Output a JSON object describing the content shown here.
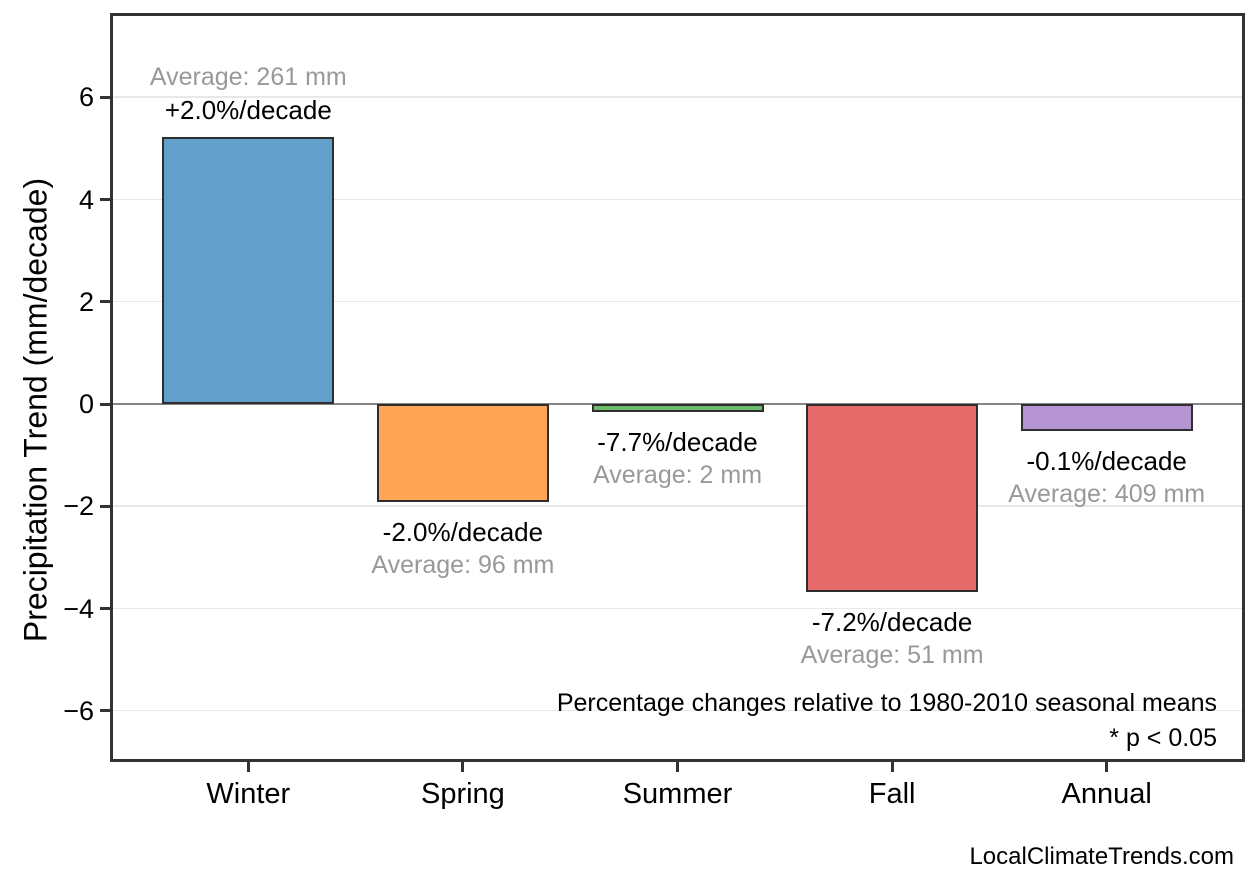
{
  "page": {
    "watermark": "LocalClimateTrends.com"
  },
  "chart_data": {
    "type": "bar",
    "title": "",
    "xlabel": "",
    "ylabel": "Precipitation Trend (mm/decade)",
    "categories": [
      "Winter",
      "Spring",
      "Summer",
      "Fall",
      "Annual"
    ],
    "values": [
      5.22,
      -1.92,
      -0.15,
      -3.67,
      -0.52
    ],
    "bar_labels": [
      {
        "percent_change": "+2.0%/decade",
        "average": "Average: 261 mm"
      },
      {
        "percent_change": "-2.0%/decade",
        "average": "Average: 96 mm"
      },
      {
        "percent_change": "-7.7%/decade",
        "average": "Average: 2 mm"
      },
      {
        "percent_change": "-7.2%/decade",
        "average": "Average: 51 mm"
      },
      {
        "percent_change": "-0.1%/decade",
        "average": "Average: 409 mm"
      }
    ],
    "bar_colors": [
      "#62A0CA",
      "#FFA556",
      "#6BBC6B",
      "#E56A69",
      "#B495D1"
    ],
    "bar_edge_color": "#2E2E2E",
    "yticks": [
      -6,
      -4,
      -2,
      0,
      2,
      4,
      6
    ],
    "ylim": [
      -7.0,
      7.65
    ],
    "grid": true,
    "gridline_color": "#E8E8E8",
    "zero_line_color": "#858585",
    "frame_color": "#333333",
    "percent_label_color": "#000000",
    "average_label_color": "#999999",
    "annotations": [
      "Percentage changes relative to 1980-2010 seasonal means",
      "* p < 0.05"
    ],
    "annotation_align": "right",
    "legend": "none"
  }
}
